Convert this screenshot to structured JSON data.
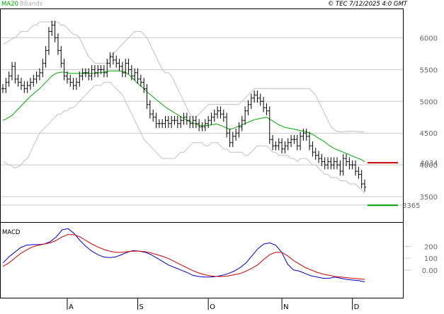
{
  "header": {
    "legend_ma": "MA20",
    "legend_bands": "BBands",
    "copyright": "© TEC 7/12/2025 4:0 GMT"
  },
  "colors": {
    "price": "#000000",
    "ma20": "#00aa00",
    "bands": "#c0c0c0",
    "resistance": "#cc0000",
    "support": "#009900",
    "macd": "#0000cc",
    "signal": "#cc0000",
    "grid": "#c8c8c8"
  },
  "chart_data": [
    {
      "type": "line",
      "name": "price-panel",
      "title": "",
      "xlabel": "",
      "ylabel": "",
      "ylim": [
        3100,
        6450
      ],
      "yticks": [
        3500,
        4000,
        4500,
        5000,
        5500,
        6000
      ],
      "ytick_labels": [
        "3500",
        "4000",
        "4500",
        "5000",
        "5500",
        "6000"
      ],
      "xticks": [
        {
          "label": "A",
          "index": 21
        },
        {
          "label": "S",
          "index": 44
        },
        {
          "label": "O",
          "index": 67
        },
        {
          "label": "N",
          "index": 91
        },
        {
          "label": "D",
          "index": 114
        }
      ],
      "grid": true,
      "n": 119,
      "close": [
        5200,
        5300,
        5400,
        5550,
        5350,
        5300,
        5250,
        5200,
        5250,
        5300,
        5350,
        5400,
        5450,
        5600,
        5800,
        6100,
        6200,
        6000,
        5800,
        5600,
        5400,
        5350,
        5300,
        5250,
        5300,
        5400,
        5450,
        5450,
        5400,
        5500,
        5450,
        5500,
        5500,
        5450,
        5600,
        5700,
        5650,
        5600,
        5550,
        5450,
        5600,
        5500,
        5400,
        5450,
        5350,
        5300,
        5200,
        4950,
        4800,
        4750,
        4650,
        4650,
        4650,
        4700,
        4650,
        4700,
        4700,
        4650,
        4700,
        4750,
        4700,
        4650,
        4700,
        4650,
        4600,
        4600,
        4650,
        4700,
        4750,
        4800,
        4850,
        4800,
        4750,
        4500,
        4350,
        4450,
        4500,
        4600,
        4700,
        4850,
        4950,
        5050,
        5100,
        5050,
        5000,
        4900,
        4850,
        4400,
        4300,
        4300,
        4350,
        4250,
        4300,
        4350,
        4400,
        4400,
        4300,
        4450,
        4500,
        4450,
        4300,
        4200,
        4150,
        4100,
        4050,
        4000,
        4050,
        4000,
        4050,
        4000,
        3900,
        4100,
        4050,
        4000,
        4000,
        3900,
        3850,
        3700,
        3650
      ],
      "ma20": [
        4700,
        4720,
        4750,
        4780,
        4830,
        4880,
        4930,
        4980,
        5030,
        5080,
        5120,
        5160,
        5200,
        5250,
        5300,
        5350,
        5400,
        5430,
        5450,
        5460,
        5460,
        5450,
        5440,
        5440,
        5440,
        5440,
        5440,
        5440,
        5440,
        5440,
        5440,
        5450,
        5450,
        5460,
        5470,
        5480,
        5480,
        5480,
        5480,
        5470,
        5460,
        5420,
        5380,
        5330,
        5280,
        5240,
        5200,
        5150,
        5110,
        5070,
        5030,
        4990,
        4950,
        4910,
        4880,
        4850,
        4820,
        4790,
        4760,
        4730,
        4700,
        4680,
        4660,
        4640,
        4620,
        4620,
        4620,
        4620,
        4630,
        4640,
        4640,
        4620,
        4600,
        4580,
        4560,
        4570,
        4590,
        4610,
        4630,
        4650,
        4670,
        4690,
        4710,
        4720,
        4730,
        4740,
        4750,
        4720,
        4690,
        4660,
        4630,
        4610,
        4590,
        4580,
        4570,
        4560,
        4550,
        4540,
        4530,
        4520,
        4500,
        4480,
        4450,
        4420,
        4390,
        4360,
        4320,
        4290,
        4260,
        4240,
        4220,
        4200,
        4180,
        4160,
        4140,
        4120,
        4100,
        4080,
        4050
      ],
      "upper_band": [
        5900,
        5920,
        5950,
        5980,
        6000,
        6050,
        6100,
        6100,
        6100,
        6150,
        6200,
        6200,
        6250,
        6250,
        6250,
        6250,
        6250,
        6250,
        6250,
        6200,
        6200,
        6150,
        6100,
        6050,
        6050,
        6000,
        5900,
        5800,
        5700,
        5650,
        5600,
        5600,
        5600,
        5600,
        5600,
        5700,
        5750,
        5800,
        5850,
        5900,
        5950,
        6000,
        6050,
        6100,
        6100,
        6100,
        6050,
        6000,
        5900,
        5800,
        5700,
        5600,
        5500,
        5450,
        5450,
        5400,
        5300,
        5200,
        5100,
        5000,
        4900,
        4800,
        4750,
        4750,
        4800,
        4850,
        4900,
        4950,
        4950,
        4950,
        4950,
        4950,
        4950,
        4950,
        4950,
        4950,
        4950,
        4950,
        5000,
        5050,
        5100,
        5150,
        5200,
        5200,
        5200,
        5200,
        5200,
        5200,
        5200,
        5200,
        5200,
        5200,
        5200,
        5200,
        5200,
        5200,
        5200,
        5200,
        5200,
        5200,
        5200,
        5150,
        5100,
        5000,
        4900,
        4800,
        4700,
        4600,
        4550,
        4530,
        4520,
        4520,
        4530,
        4530,
        4530,
        4530,
        4520,
        4520,
        4520
      ],
      "lower_band": [
        4050,
        4030,
        4000,
        3980,
        3950,
        3970,
        4000,
        4070,
        4100,
        4200,
        4300,
        4400,
        4500,
        4550,
        4600,
        4650,
        4700,
        4750,
        4800,
        4800,
        4850,
        4850,
        4900,
        4900,
        4950,
        5000,
        5050,
        5100,
        5150,
        5200,
        5250,
        5250,
        5250,
        5300,
        5300,
        5300,
        5250,
        5200,
        5150,
        5100,
        5000,
        4900,
        4800,
        4700,
        4600,
        4500,
        4400,
        4350,
        4300,
        4250,
        4200,
        4150,
        4100,
        4100,
        4100,
        4100,
        4100,
        4150,
        4200,
        4200,
        4250,
        4300,
        4350,
        4350,
        4350,
        4350,
        4300,
        4300,
        4350,
        4350,
        4350,
        4300,
        4250,
        4250,
        4200,
        4200,
        4200,
        4200,
        4200,
        4150,
        4150,
        4200,
        4250,
        4300,
        4300,
        4300,
        4300,
        4250,
        4200,
        4200,
        4150,
        4150,
        4150,
        4150,
        4100,
        4100,
        4050,
        4100,
        4100,
        4100,
        4050,
        4000,
        4000,
        3950,
        3900,
        3850,
        3850,
        3800,
        3800,
        3800,
        3750,
        3750,
        3750,
        3700,
        3700,
        3700,
        3650,
        3600,
        3550
      ],
      "levels": [
        {
          "name": "resistance",
          "value": 4034,
          "label": "4034"
        },
        {
          "name": "support",
          "value": 3365,
          "label": "3365"
        }
      ]
    },
    {
      "type": "line",
      "name": "macd-panel",
      "title": "MACD",
      "ylim": [
        -235,
        400
      ],
      "yticks": [
        0,
        100,
        200
      ],
      "ytick_labels": [
        "0.00",
        "100",
        "200"
      ],
      "series": [
        {
          "name": "",
          "color": "#0000cc",
          "values": [
            60,
            110,
            150,
            190,
            210,
            215,
            215,
            220,
            240,
            280,
            340,
            350,
            310,
            250,
            200,
            160,
            130,
            110,
            105,
            110,
            130,
            150,
            165,
            160,
            150,
            130,
            100,
            70,
            40,
            20,
            0,
            -20,
            -45,
            -55,
            -60,
            -60,
            -55,
            -45,
            -30,
            -10,
            20,
            60,
            120,
            180,
            220,
            230,
            210,
            150,
            50,
            0,
            -10,
            -30,
            -50,
            -60,
            -70,
            -70,
            -60,
            -70,
            -80,
            -85,
            -90,
            -100
          ]
        },
        {
          "name": "",
          "color": "#cc0000",
          "values": [
            30,
            60,
            100,
            140,
            170,
            195,
            210,
            220,
            230,
            250,
            280,
            300,
            300,
            280,
            250,
            220,
            195,
            175,
            160,
            150,
            150,
            155,
            160,
            160,
            155,
            145,
            130,
            115,
            95,
            70,
            45,
            20,
            -5,
            -25,
            -40,
            -50,
            -55,
            -55,
            -50,
            -40,
            -30,
            -10,
            15,
            45,
            90,
            130,
            150,
            150,
            120,
            80,
            50,
            20,
            0,
            -20,
            -35,
            -45,
            -55,
            -60,
            -65,
            -70,
            -75,
            -80
          ]
        }
      ]
    }
  ]
}
